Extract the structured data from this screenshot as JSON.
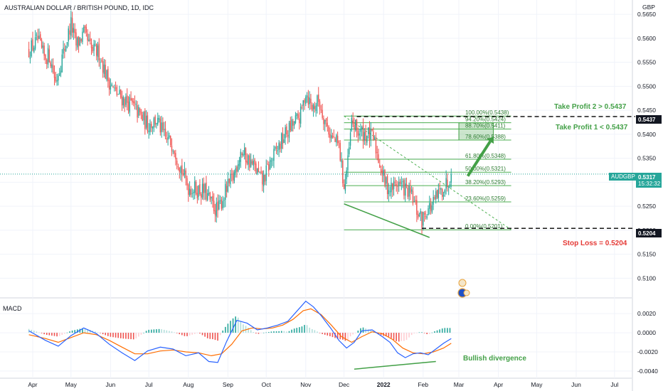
{
  "chart_data": {
    "type": "candlestick",
    "title": "AUSTRALIAN DOLLAR / BRITISH POUND, 1D, IDC",
    "currency": "GBP",
    "symbol_tag": "AUDGBP",
    "last_price": "0.5317",
    "countdown": "15:32:32",
    "price_ylim": [
      0.5065,
      0.5665
    ],
    "price_ticks": [
      "0.5650",
      "0.5600",
      "0.5550",
      "0.5500",
      "0.5450",
      "0.5400",
      "0.5350",
      "0.5300",
      "0.5250",
      "0.5200",
      "0.5150",
      "0.5100"
    ],
    "price_tick_values": [
      0.565,
      0.56,
      0.555,
      0.55,
      0.545,
      0.54,
      0.535,
      0.53,
      0.525,
      0.52,
      0.515,
      0.51
    ],
    "months": [
      "Apr",
      "May",
      "Jun",
      "Jul",
      "Aug",
      "Sep",
      "Oct",
      "Nov",
      "Dec",
      "2022",
      "Feb",
      "Mar",
      "Apr",
      "May",
      "Jun",
      "Jul"
    ],
    "month_day_index": [
      0,
      30,
      61,
      91,
      122,
      153,
      183,
      214,
      244,
      275,
      306,
      334,
      365,
      395,
      426,
      456
    ],
    "price_path": [
      [
        -3,
        0.5575
      ],
      [
        4,
        0.5595
      ],
      [
        9,
        0.556
      ],
      [
        13,
        0.5565
      ],
      [
        18,
        0.551
      ],
      [
        24,
        0.557
      ],
      [
        30,
        0.563
      ],
      [
        34,
        0.5585
      ],
      [
        40,
        0.561
      ],
      [
        46,
        0.5575
      ],
      [
        52,
        0.557
      ],
      [
        58,
        0.552
      ],
      [
        64,
        0.549
      ],
      [
        70,
        0.5475
      ],
      [
        78,
        0.546
      ],
      [
        84,
        0.544
      ],
      [
        90,
        0.542
      ],
      [
        97,
        0.543
      ],
      [
        104,
        0.539
      ],
      [
        110,
        0.538
      ],
      [
        116,
        0.533
      ],
      [
        122,
        0.529
      ],
      [
        128,
        0.5285
      ],
      [
        135,
        0.528
      ],
      [
        140,
        0.5255
      ],
      [
        145,
        0.524
      ],
      [
        151,
        0.528
      ],
      [
        157,
        0.531
      ],
      [
        163,
        0.5365
      ],
      [
        168,
        0.535
      ],
      [
        174,
        0.533
      ],
      [
        180,
        0.53
      ],
      [
        186,
        0.534
      ],
      [
        192,
        0.537
      ],
      [
        198,
        0.54
      ],
      [
        204,
        0.542
      ],
      [
        210,
        0.544
      ],
      [
        214,
        0.549
      ],
      [
        219,
        0.5455
      ],
      [
        224,
        0.547
      ],
      [
        229,
        0.543
      ],
      [
        234,
        0.5395
      ],
      [
        240,
        0.5375
      ],
      [
        244,
        0.529
      ],
      [
        247,
        0.534
      ],
      [
        250,
        0.5425
      ],
      [
        255,
        0.5405
      ],
      [
        262,
        0.54
      ],
      [
        267,
        0.539
      ],
      [
        272,
        0.534
      ],
      [
        276,
        0.53
      ],
      [
        280,
        0.5285
      ],
      [
        286,
        0.53
      ],
      [
        292,
        0.5285
      ],
      [
        297,
        0.527
      ],
      [
        301,
        0.524
      ],
      [
        305,
        0.522
      ],
      [
        309,
        0.5245
      ],
      [
        313,
        0.525
      ],
      [
        317,
        0.527
      ],
      [
        321,
        0.5285
      ],
      [
        325,
        0.53
      ],
      [
        328,
        0.5317
      ]
    ],
    "fib_levels": [
      {
        "label": "100.00%(0.5438)",
        "value": 0.5438
      },
      {
        "label": "94.20%(0.5424)",
        "value": 0.5424
      },
      {
        "label": "88.70%(0.5411)",
        "value": 0.5411
      },
      {
        "label": "78.60%(0.5388)",
        "value": 0.5388
      },
      {
        "label": "61.80%(0.5348)",
        "value": 0.5348
      },
      {
        "label": "50.00%(0.5321)",
        "value": 0.5321
      },
      {
        "label": "38.20%(0.5293)",
        "value": 0.5293
      },
      {
        "label": "23.60%(0.5259)",
        "value": 0.5259
      },
      {
        "label": "0.00%(0.5201)",
        "value": 0.5201
      }
    ],
    "take_profit_1": {
      "label": "Take Profit 1 < 0.5437",
      "value": 0.5437
    },
    "take_profit_2": {
      "label": "Take Profit 2 > 0.5437",
      "value": 0.5437,
      "tag": "0.5437"
    },
    "stop_loss": {
      "label": "Stop Loss = 0.5204",
      "value": 0.5204,
      "tag": "0.5204"
    },
    "target_zone": {
      "from_day": 334,
      "to_day": 361,
      "low": 0.5388,
      "high": 0.5424
    },
    "forecast_arrow": {
      "from": [
        341,
        0.5313
      ],
      "to": [
        361,
        0.5395
      ]
    },
    "macd": {
      "label": "MACD",
      "ylim": [
        -0.0046,
        0.0032
      ],
      "ticks": [
        "0.0020",
        "0.0000",
        "-0.0020",
        "-0.0040"
      ],
      "tick_values": [
        0.002,
        0,
        -0.002,
        -0.004
      ],
      "macd_line_path": [
        [
          -3,
          0.0002
        ],
        [
          10,
          -0.0008
        ],
        [
          20,
          -0.0014
        ],
        [
          30,
          -0.0003
        ],
        [
          40,
          0.0005
        ],
        [
          50,
          -0.0001
        ],
        [
          60,
          -0.0012
        ],
        [
          70,
          -0.0021
        ],
        [
          80,
          -0.0029
        ],
        [
          90,
          -0.0019
        ],
        [
          100,
          -0.0015
        ],
        [
          110,
          -0.0017
        ],
        [
          120,
          -0.0024
        ],
        [
          130,
          -0.0021
        ],
        [
          138,
          -0.003
        ],
        [
          145,
          -0.0031
        ],
        [
          152,
          -0.0009
        ],
        [
          160,
          0.0013
        ],
        [
          168,
          0.001
        ],
        [
          176,
          0.0003
        ],
        [
          184,
          0.0005
        ],
        [
          192,
          0.0008
        ],
        [
          200,
          0.0012
        ],
        [
          208,
          0.0024
        ],
        [
          214,
          0.0033
        ],
        [
          220,
          0.0027
        ],
        [
          226,
          0.0018
        ],
        [
          234,
          0.0004
        ],
        [
          240,
          -0.0008
        ],
        [
          246,
          -0.0016
        ],
        [
          252,
          -0.001
        ],
        [
          258,
          0.0002
        ],
        [
          266,
          0.0003
        ],
        [
          274,
          -0.0004
        ],
        [
          280,
          -0.001
        ],
        [
          286,
          -0.0021
        ],
        [
          292,
          -0.0026
        ],
        [
          298,
          -0.0022
        ],
        [
          304,
          -0.0021
        ],
        [
          310,
          -0.0023
        ],
        [
          316,
          -0.0017
        ],
        [
          322,
          -0.0011
        ],
        [
          328,
          -0.0006
        ]
      ],
      "signal_line_path": [
        [
          -3,
          -0.0002
        ],
        [
          10,
          -0.0006
        ],
        [
          20,
          -0.001
        ],
        [
          30,
          -0.0005
        ],
        [
          40,
          0.0
        ],
        [
          50,
          -0.0002
        ],
        [
          60,
          -0.0008
        ],
        [
          70,
          -0.0015
        ],
        [
          80,
          -0.0022
        ],
        [
          90,
          -0.0022
        ],
        [
          100,
          -0.0019
        ],
        [
          110,
          -0.0018
        ],
        [
          120,
          -0.002
        ],
        [
          130,
          -0.0021
        ],
        [
          140,
          -0.0024
        ],
        [
          148,
          -0.0022
        ],
        [
          156,
          -0.0012
        ],
        [
          164,
          0.0002
        ],
        [
          172,
          0.0005
        ],
        [
          180,
          0.0004
        ],
        [
          188,
          0.0005
        ],
        [
          196,
          0.0008
        ],
        [
          204,
          0.0014
        ],
        [
          212,
          0.0023
        ],
        [
          218,
          0.0025
        ],
        [
          226,
          0.0019
        ],
        [
          234,
          0.0008
        ],
        [
          242,
          -0.0004
        ],
        [
          250,
          -0.001
        ],
        [
          258,
          -0.0004
        ],
        [
          266,
          0.0001
        ],
        [
          274,
          -0.0001
        ],
        [
          282,
          -0.0007
        ],
        [
          290,
          -0.0016
        ],
        [
          298,
          -0.0021
        ],
        [
          306,
          -0.0022
        ],
        [
          314,
          -0.002
        ],
        [
          322,
          -0.0016
        ],
        [
          328,
          -0.0011
        ]
      ],
      "divergence_label": "Bullish divergence"
    }
  }
}
